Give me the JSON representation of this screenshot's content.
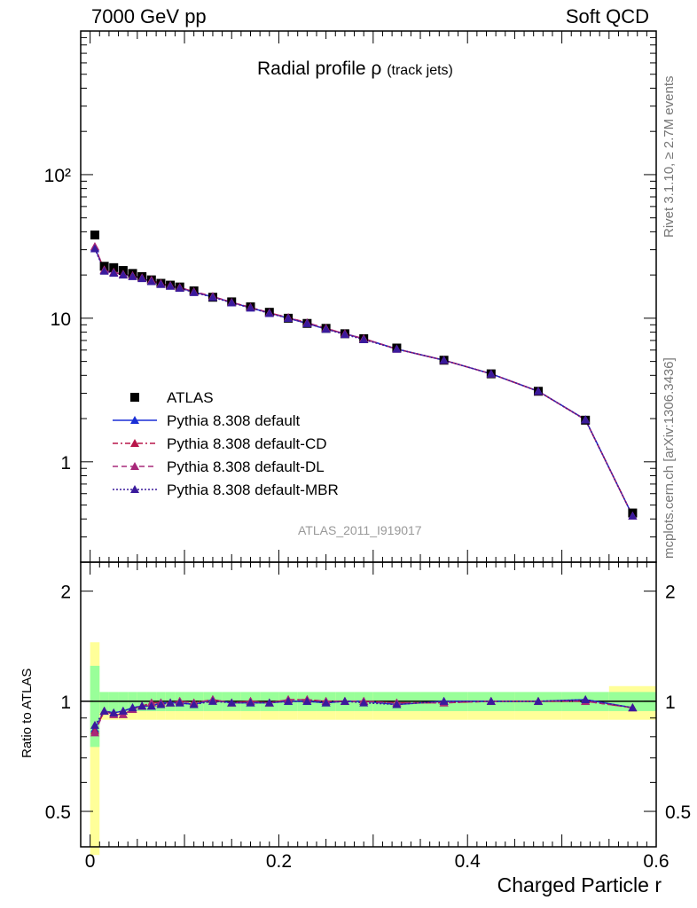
{
  "header": {
    "left": "7000 GeV pp",
    "right": "Soft QCD"
  },
  "title": {
    "main": "Radial profile ρ",
    "sub": "(track jets)"
  },
  "side_labels": {
    "rivet": "Rivet 3.1.10, ≥ 2.7M events",
    "mcplots": "mcplots.cern.ch [arXiv:1306.3436]"
  },
  "watermark": "ATLAS_2011_I919017",
  "axes": {
    "xlabel": "Charged Particle r",
    "ratio_ylabel": "Ratio to ATLAS",
    "main_ytick_labels": [
      "1",
      "10",
      "10²"
    ],
    "ratio_ytick_labels": [
      "0.5",
      "1",
      "2"
    ],
    "xtick_labels": [
      "0",
      "0.2",
      "0.4",
      "0.6"
    ]
  },
  "legend": [
    {
      "label": "ATLAS",
      "color": "#000000",
      "marker": "square",
      "line": "none"
    },
    {
      "label": "Pythia 8.308 default",
      "color": "#1a2fd6",
      "marker": "triangle",
      "line": "solid"
    },
    {
      "label": "Pythia 8.308 default-CD",
      "color": "#b8164a",
      "marker": "triangle",
      "line": "dashdot"
    },
    {
      "label": "Pythia 8.308 default-DL",
      "color": "#a8287a",
      "marker": "triangle",
      "line": "dashed"
    },
    {
      "label": "Pythia 8.308 default-MBR",
      "color": "#3a1a9c",
      "marker": "triangle",
      "line": "dotted"
    }
  ],
  "chart_data": [
    {
      "type": "scatter",
      "title": "Radial profile ρ (track jets)",
      "xlabel": "Charged Particle r",
      "ylabel": "",
      "xlim": [
        -0.01,
        0.6
      ],
      "ylim": [
        0.2,
        1000
      ],
      "yscale": "log",
      "x": [
        0.005,
        0.015,
        0.025,
        0.035,
        0.045,
        0.055,
        0.065,
        0.075,
        0.085,
        0.095,
        0.11,
        0.13,
        0.15,
        0.17,
        0.19,
        0.21,
        0.23,
        0.25,
        0.27,
        0.29,
        0.325,
        0.375,
        0.425,
        0.475,
        0.525,
        0.575
      ],
      "series": [
        {
          "name": "ATLAS",
          "values": [
            38,
            23,
            22.5,
            21.5,
            20.5,
            19.5,
            18.5,
            17.5,
            17,
            16.5,
            15.5,
            14,
            13,
            12,
            11,
            10,
            9.2,
            8.5,
            7.8,
            7.2,
            6.2,
            5.1,
            4.1,
            3.1,
            1.95,
            0.44
          ]
        },
        {
          "name": "Pythia 8.308 default",
          "values": [
            31,
            21.5,
            20.8,
            20.2,
            19.6,
            19,
            18,
            17.3,
            16.8,
            16.3,
            15.2,
            14.1,
            12.9,
            11.8,
            10.9,
            10,
            9.2,
            8.4,
            7.8,
            7.2,
            6.1,
            5.1,
            4.1,
            3.1,
            1.97,
            0.42
          ]
        },
        {
          "name": "Pythia 8.308 default-CD",
          "values": [
            31.5,
            21.7,
            20.9,
            20.2,
            19.8,
            19.1,
            18.4,
            17.4,
            16.9,
            16.4,
            15.3,
            14.2,
            12.9,
            11.9,
            10.9,
            10.1,
            9.3,
            8.5,
            7.8,
            7.2,
            6.1,
            5.1,
            4.1,
            3.1,
            1.96,
            0.42
          ]
        },
        {
          "name": "Pythia 8.308 default-DL",
          "values": [
            31.5,
            21.7,
            20.9,
            20.2,
            19.8,
            19.1,
            18.4,
            17.4,
            16.9,
            16.4,
            15.3,
            14.2,
            12.9,
            11.9,
            10.9,
            10.1,
            9.3,
            8.5,
            7.8,
            7.2,
            6.1,
            5.1,
            4.1,
            3.1,
            1.96,
            0.42
          ]
        },
        {
          "name": "Pythia 8.308 default-MBR",
          "values": [
            30.5,
            21.3,
            20.6,
            20,
            19.5,
            18.9,
            18,
            17.2,
            16.7,
            16.2,
            15.1,
            14,
            12.8,
            11.8,
            10.8,
            10,
            9.2,
            8.4,
            7.7,
            7.1,
            6.1,
            5.1,
            4.1,
            3.1,
            1.96,
            0.42
          ]
        }
      ]
    },
    {
      "type": "scatter",
      "title": "",
      "xlabel": "Charged Particle r",
      "ylabel": "Ratio to ATLAS",
      "xlim": [
        -0.01,
        0.6
      ],
      "ylim": [
        0.4,
        2.4
      ],
      "yscale": "log",
      "x": [
        0.005,
        0.015,
        0.025,
        0.035,
        0.045,
        0.055,
        0.065,
        0.075,
        0.085,
        0.095,
        0.11,
        0.13,
        0.15,
        0.17,
        0.19,
        0.21,
        0.23,
        0.25,
        0.27,
        0.29,
        0.325,
        0.375,
        0.425,
        0.475,
        0.525,
        0.575
      ],
      "bands": {
        "edges": [
          0.0,
          0.01,
          0.02,
          0.03,
          0.04,
          0.05,
          0.06,
          0.07,
          0.08,
          0.09,
          0.1,
          0.12,
          0.14,
          0.16,
          0.18,
          0.2,
          0.22,
          0.24,
          0.26,
          0.28,
          0.3,
          0.35,
          0.4,
          0.45,
          0.5,
          0.55,
          0.6
        ],
        "green_lo": [
          0.75,
          0.93,
          0.93,
          0.94,
          0.94,
          0.94,
          0.94,
          0.94,
          0.94,
          0.94,
          0.94,
          0.94,
          0.94,
          0.94,
          0.94,
          0.94,
          0.94,
          0.94,
          0.94,
          0.94,
          0.94,
          0.94,
          0.94,
          0.94,
          0.94,
          0.94
        ],
        "green_hi": [
          1.25,
          1.06,
          1.06,
          1.06,
          1.06,
          1.06,
          1.06,
          1.06,
          1.06,
          1.06,
          1.06,
          1.06,
          1.06,
          1.06,
          1.06,
          1.06,
          1.06,
          1.06,
          1.06,
          1.06,
          1.06,
          1.06,
          1.06,
          1.06,
          1.06,
          1.06
        ],
        "yellow_lo": [
          0.38,
          0.89,
          0.89,
          0.89,
          0.89,
          0.89,
          0.89,
          0.89,
          0.89,
          0.89,
          0.89,
          0.89,
          0.89,
          0.89,
          0.89,
          0.89,
          0.89,
          0.89,
          0.89,
          0.89,
          0.89,
          0.89,
          0.89,
          0.89,
          0.89,
          0.89
        ],
        "yellow_hi": [
          1.45,
          1.04,
          1.04,
          1.05,
          1.05,
          1.05,
          1.05,
          1.05,
          1.05,
          1.05,
          1.05,
          1.05,
          1.05,
          1.05,
          1.05,
          1.05,
          1.05,
          1.05,
          1.05,
          1.05,
          1.05,
          1.05,
          1.05,
          1.05,
          1.05,
          1.1
        ]
      },
      "series": [
        {
          "name": "Pythia 8.308 default",
          "values": [
            0.84,
            0.94,
            0.93,
            0.94,
            0.96,
            0.97,
            0.97,
            0.99,
            0.99,
            0.99,
            0.98,
            1.01,
            0.99,
            0.99,
            0.99,
            1.0,
            1.0,
            0.99,
            1.0,
            1.0,
            0.98,
            1.0,
            1.0,
            1.0,
            1.01,
            0.96
          ]
        },
        {
          "name": "Pythia 8.308 default-CD",
          "values": [
            0.83,
            0.94,
            0.92,
            0.92,
            0.95,
            0.97,
            0.99,
            0.99,
            0.99,
            1.0,
            0.99,
            1.01,
            0.99,
            1.0,
            0.99,
            1.01,
            1.01,
            1.0,
            1.0,
            1.0,
            0.99,
            0.99,
            1.0,
            1.0,
            1.0,
            0.96
          ]
        },
        {
          "name": "Pythia 8.308 default-DL",
          "values": [
            0.82,
            0.94,
            0.92,
            0.92,
            0.95,
            0.97,
            0.99,
            0.99,
            0.99,
            1.0,
            0.99,
            1.01,
            0.99,
            1.0,
            0.99,
            1.01,
            1.01,
            1.0,
            1.0,
            1.0,
            0.99,
            0.99,
            1.0,
            1.0,
            1.0,
            0.96
          ]
        },
        {
          "name": "Pythia 8.308 default-MBR",
          "values": [
            0.86,
            0.94,
            0.93,
            0.94,
            0.96,
            0.97,
            0.97,
            0.98,
            0.99,
            0.99,
            0.98,
            1.0,
            0.99,
            0.99,
            0.99,
            1.0,
            1.0,
            0.99,
            1.0,
            0.99,
            0.98,
            1.0,
            1.0,
            1.0,
            1.01,
            0.96
          ]
        }
      ]
    }
  ]
}
